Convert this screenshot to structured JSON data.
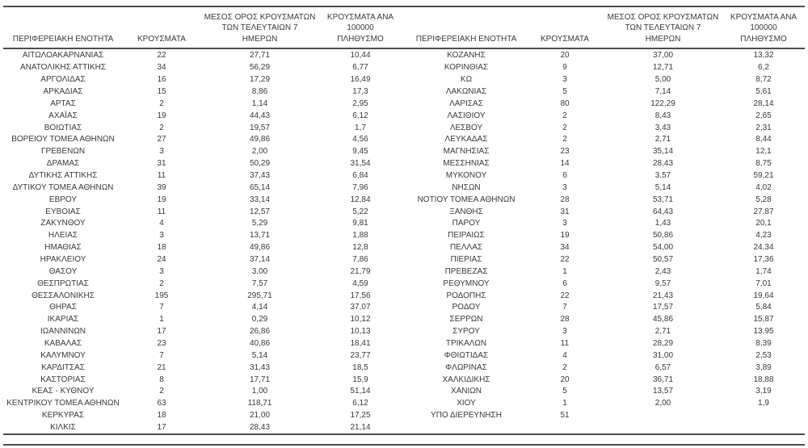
{
  "page": {
    "background": "#ffffff",
    "text_color": "#3a3a3a",
    "line_color": "#4d4d4d"
  },
  "headers": {
    "region": "ΠΕΡΙΦΕΡΕΙΑΚΗ ΕΝΟΤΗΤΑ",
    "cases": "ΚΡΟΥΣΜΑΤΑ",
    "avg7": "ΜΕΣΟΣ ΟΡΟΣ ΚΡΟΥΣΜΑΤΩΝ\nΤΩΝ ΤΕΛΕΥΤΑΙΩΝ 7\nΗΜΕΡΩΝ",
    "per100k": "ΚΡΟΥΣΜΑΤΑ ΑΝΑ 100000\nΠΛΗΘΥΣΜΟ"
  },
  "left_rows": [
    [
      "ΑΙΤΩΛΟΑΚΑΡΝΑΝΙΑΣ",
      "22",
      "27,71",
      "10,44"
    ],
    [
      "ΑΝΑΤΟΛΙΚΗΣ ΑΤΤΙΚΗΣ",
      "34",
      "56,29",
      "6,77"
    ],
    [
      "ΑΡΓΟΛΙΔΑΣ",
      "16",
      "17,29",
      "16,49"
    ],
    [
      "ΑΡΚΑΔΙΑΣ",
      "15",
      "8,86",
      "17,3"
    ],
    [
      "ΑΡΤΑΣ",
      "2",
      "1,14",
      "2,95"
    ],
    [
      "ΑΧΑΪΑΣ",
      "19",
      "44,43",
      "6,12"
    ],
    [
      "ΒΟΙΩΤΙΑΣ",
      "2",
      "19,57",
      "1,7"
    ],
    [
      "ΒΟΡΕΙΟΥ ΤΟΜΕΑ ΑΘΗΝΩΝ",
      "27",
      "49,86",
      "4,56"
    ],
    [
      "ΓΡΕΒΕΝΩΝ",
      "3",
      "2,00",
      "9,45"
    ],
    [
      "ΔΡΑΜΑΣ",
      "31",
      "50,29",
      "31,54"
    ],
    [
      "ΔΥΤΙΚΗΣ ΑΤΤΙΚΗΣ",
      "11",
      "37,43",
      "6,84"
    ],
    [
      "ΔΥΤΙΚΟΥ ΤΟΜΕΑ ΑΘΗΝΩΝ",
      "39",
      "65,14",
      "7,96"
    ],
    [
      "ΕΒΡΟΥ",
      "19",
      "33,14",
      "12,84"
    ],
    [
      "ΕΥΒΟΙΑΣ",
      "11",
      "12,57",
      "5,22"
    ],
    [
      "ΖΑΚΥΝΘΟΥ",
      "4",
      "5,29",
      "9,81"
    ],
    [
      "ΗΛΕΙΑΣ",
      "3",
      "13,71",
      "1,88"
    ],
    [
      "ΗΜΑΘΙΑΣ",
      "18",
      "49,86",
      "12,8"
    ],
    [
      "ΗΡΑΚΛΕΙΟΥ",
      "24",
      "37,14",
      "7,86"
    ],
    [
      "ΘΑΣΟΥ",
      "3",
      "3,00",
      "21,79"
    ],
    [
      "ΘΕΣΠΡΩΤΙΑΣ",
      "2",
      "7,57",
      "4,59"
    ],
    [
      "ΘΕΣΣΑΛΟΝΙΚΗΣ",
      "195",
      "295,71",
      "17,56"
    ],
    [
      "ΘΗΡΑΣ",
      "7",
      "4,14",
      "37,07"
    ],
    [
      "ΙΚΑΡΙΑΣ",
      "1",
      "0,29",
      "10,12"
    ],
    [
      "ΙΩΑΝΝΙΝΩΝ",
      "17",
      "26,86",
      "10,13"
    ],
    [
      "ΚΑΒΑΛΑΣ",
      "23",
      "40,86",
      "18,41"
    ],
    [
      "ΚΑΛΥΜΝΟΥ",
      "7",
      "5,14",
      "23,77"
    ],
    [
      "ΚΑΡΔΙΤΣΑΣ",
      "21",
      "31,43",
      "18,5"
    ],
    [
      "ΚΑΣΤΟΡΙΑΣ",
      "8",
      "17,71",
      "15,9"
    ],
    [
      "ΚΕΑΣ - ΚΥΘΝΟΥ",
      "2",
      "1,00",
      "51,14"
    ],
    [
      "ΚΕΝΤΡΙΚΟΥ ΤΟΜΕΑ ΑΘΗΝΩΝ",
      "63",
      "118,71",
      "6,12"
    ],
    [
      "ΚΕΡΚΥΡΑΣ",
      "18",
      "21,00",
      "17,25"
    ],
    [
      "ΚΙΛΚΙΣ",
      "17",
      "28,43",
      "21,14"
    ]
  ],
  "right_rows": [
    [
      "ΚΟΖΑΝΗΣ",
      "20",
      "37,00",
      "13,32"
    ],
    [
      "ΚΟΡΙΝΘΙΑΣ",
      "9",
      "12,71",
      "6,2"
    ],
    [
      "ΚΩ",
      "3",
      "5,00",
      "8,72"
    ],
    [
      "ΛΑΚΩΝΙΑΣ",
      "5",
      "7,14",
      "5,61"
    ],
    [
      "ΛΑΡΙΣΑΣ",
      "80",
      "122,29",
      "28,14"
    ],
    [
      "ΛΑΣΙΘΙΟΥ",
      "2",
      "8,43",
      "2,65"
    ],
    [
      "ΛΕΣΒΟΥ",
      "2",
      "3,43",
      "2,31"
    ],
    [
      "ΛΕΥΚΑΔΑΣ",
      "2",
      "2,71",
      "8,44"
    ],
    [
      "ΜΑΓΝΗΣΙΑΣ",
      "23",
      "35,14",
      "12,1"
    ],
    [
      "ΜΕΣΣΗΝΙΑΣ",
      "14",
      "28,43",
      "8,75"
    ],
    [
      "ΜΥΚΟΝΟΥ",
      "6",
      "3,57",
      "59,21"
    ],
    [
      "ΝΗΣΩΝ",
      "3",
      "5,14",
      "4,02"
    ],
    [
      "ΝΟΤΙΟΥ ΤΟΜΕΑ ΑΘΗΝΩΝ",
      "28",
      "53,71",
      "5,28"
    ],
    [
      "ΞΑΝΘΗΣ",
      "31",
      "64,43",
      "27,87"
    ],
    [
      "ΠΑΡΟΥ",
      "3",
      "1,43",
      "20,1"
    ],
    [
      "ΠΕΙΡΑΙΩΣ",
      "19",
      "50,86",
      "4,23"
    ],
    [
      "ΠΕΛΛΑΣ",
      "34",
      "54,00",
      "24,34"
    ],
    [
      "ΠΙΕΡΙΑΣ",
      "22",
      "50,57",
      "17,36"
    ],
    [
      "ΠΡΕΒΕΖΑΣ",
      "1",
      "2,43",
      "1,74"
    ],
    [
      "ΡΕΘΥΜΝΟΥ",
      "6",
      "9,57",
      "7,01"
    ],
    [
      "ΡΟΔΟΠΗΣ",
      "22",
      "21,43",
      "19,64"
    ],
    [
      "ΡΟΔΟΥ",
      "7",
      "17,57",
      "5,84"
    ],
    [
      "ΣΕΡΡΩΝ",
      "28",
      "45,86",
      "15,87"
    ],
    [
      "ΣΥΡΟΥ",
      "3",
      "2,71",
      "13,95"
    ],
    [
      "ΤΡΙΚΑΛΩΝ",
      "11",
      "28,29",
      "8,39"
    ],
    [
      "ΦΘΙΩΤΙΔΑΣ",
      "4",
      "31,00",
      "2,53"
    ],
    [
      "ΦΛΩΡΙΝΑΣ",
      "2",
      "6,57",
      "3,89"
    ],
    [
      "ΧΑΛΚΙΔΙΚΗΣ",
      "20",
      "36,71",
      "18,88"
    ],
    [
      "ΧΑΝΙΩΝ",
      "5",
      "13,57",
      "3,19"
    ],
    [
      "ΧΙΟΥ",
      "1",
      "2,00",
      "1,9"
    ],
    [
      "ΥΠΟ ΔΙΕΡΕΥΝΗΣΗ",
      "51",
      "",
      ""
    ]
  ]
}
